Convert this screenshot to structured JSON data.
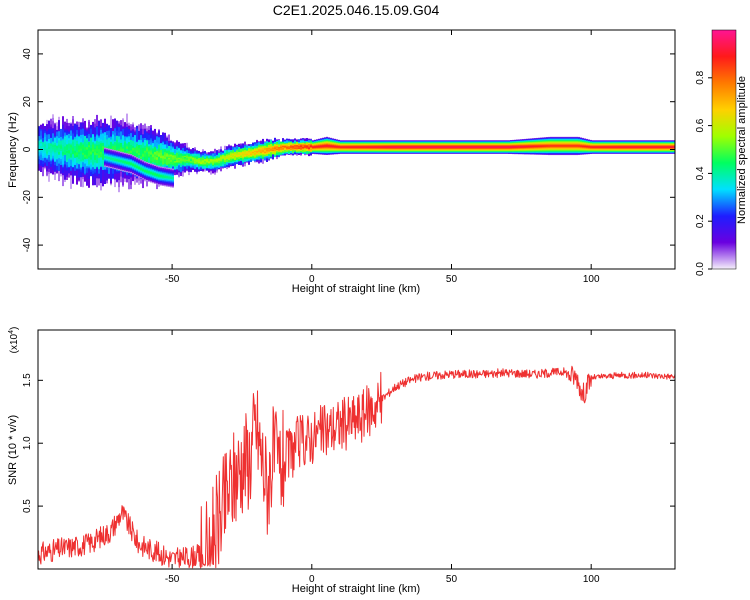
{
  "figure_title": "C2E1.2025.046.15.09.G04",
  "chart_data": [
    {
      "type": "heatmap",
      "title": "",
      "xlabel": "Height of straight line (km)",
      "ylabel": "Frequency (Hz)",
      "xlim": [
        -98,
        130
      ],
      "ylim": [
        -50,
        50
      ],
      "xticks": [
        -50,
        0,
        50,
        100
      ],
      "yticks": [
        -40,
        -20,
        0,
        20,
        40
      ],
      "colorbar": {
        "label": "Normalized spectral amplitude",
        "range": [
          0,
          1
        ],
        "ticks": [
          "0.0",
          "0.2",
          "0.4",
          "0.6",
          "0.8"
        ],
        "colors": [
          "#f5f0fa",
          "#6a00e0",
          "#1e1eff",
          "#00e0ff",
          "#00ff60",
          "#a0ff00",
          "#ffd000",
          "#ff7a00",
          "#ff1a1a",
          "#ff1493"
        ]
      },
      "ridge": {
        "x": [
          -98,
          -90,
          -80,
          -70,
          -60,
          -55,
          -50,
          -45,
          -40,
          -35,
          -30,
          -25,
          -20,
          -15,
          -10,
          -5,
          0,
          5,
          10,
          20,
          30,
          50,
          70,
          85,
          95,
          100,
          110,
          130
        ],
        "center_hz": [
          1,
          0,
          -1,
          -1,
          -2,
          -3,
          -4,
          -4,
          -5,
          -5,
          -3,
          -2,
          -1,
          0,
          1,
          1,
          1,
          1.5,
          1,
          1,
          1,
          1,
          1,
          1.5,
          1.5,
          1,
          1,
          1
        ],
        "width_hz": [
          10,
          11,
          12,
          12,
          11,
          10,
          7,
          5,
          4,
          4,
          4,
          4,
          4,
          4,
          3,
          3,
          3,
          4,
          3,
          3,
          3,
          3,
          3,
          4,
          4,
          3,
          3,
          3
        ],
        "peak_amplitude": [
          0.35,
          0.4,
          0.45,
          0.45,
          0.45,
          0.5,
          0.5,
          0.5,
          0.55,
          0.55,
          0.6,
          0.65,
          0.7,
          0.75,
          0.8,
          0.85,
          0.9,
          0.9,
          0.9,
          0.92,
          0.95,
          0.95,
          0.95,
          0.85,
          0.85,
          0.9,
          0.92,
          0.92
        ]
      },
      "secondary_band": {
        "x": [
          -75,
          -65,
          -60,
          -55,
          -50
        ],
        "center_hz": [
          -3,
          -6,
          -9,
          -11,
          -12
        ],
        "peak_amplitude": [
          0.4,
          0.45,
          0.45,
          0.45,
          0.4
        ]
      }
    },
    {
      "type": "line",
      "title": "",
      "xlabel": "Height of straight line (km)",
      "ylabel": "SNR (10 * v/v)",
      "y_multiplier_label": "(x10",
      "y_multiplier_exp": "4",
      "xlim": [
        -98,
        130
      ],
      "ylim": [
        0,
        19000
      ],
      "xticks": [
        -50,
        0,
        50,
        100
      ],
      "yticks": [
        5000,
        10000,
        15000
      ],
      "ytick_labels": [
        "0.5",
        "1.0",
        "1.5"
      ],
      "series": [
        {
          "color": "#ee3030",
          "x": [
            -98,
            -90,
            -80,
            -72,
            -68,
            -62,
            -55,
            -50,
            -45,
            -40,
            -37,
            -35,
            -32,
            -30,
            -28,
            -25,
            -22,
            -20,
            -18,
            -16,
            -14,
            -12,
            -10,
            -5,
            0,
            5,
            10,
            15,
            20,
            25,
            30,
            35,
            40,
            50,
            60,
            70,
            80,
            90,
            95,
            97,
            100,
            110,
            120,
            130
          ],
          "y": [
            1200,
            1600,
            2000,
            3000,
            4500,
            2000,
            1300,
            800,
            900,
            1100,
            1300,
            3000,
            4500,
            6000,
            7000,
            8500,
            9000,
            11500,
            9000,
            6500,
            9000,
            8000,
            8500,
            10000,
            10500,
            11000,
            11500,
            11800,
            12500,
            13500,
            14500,
            15000,
            15300,
            15500,
            15500,
            15600,
            15500,
            15700,
            15200,
            13800,
            15200,
            15400,
            15400,
            15300
          ]
        }
      ]
    }
  ]
}
